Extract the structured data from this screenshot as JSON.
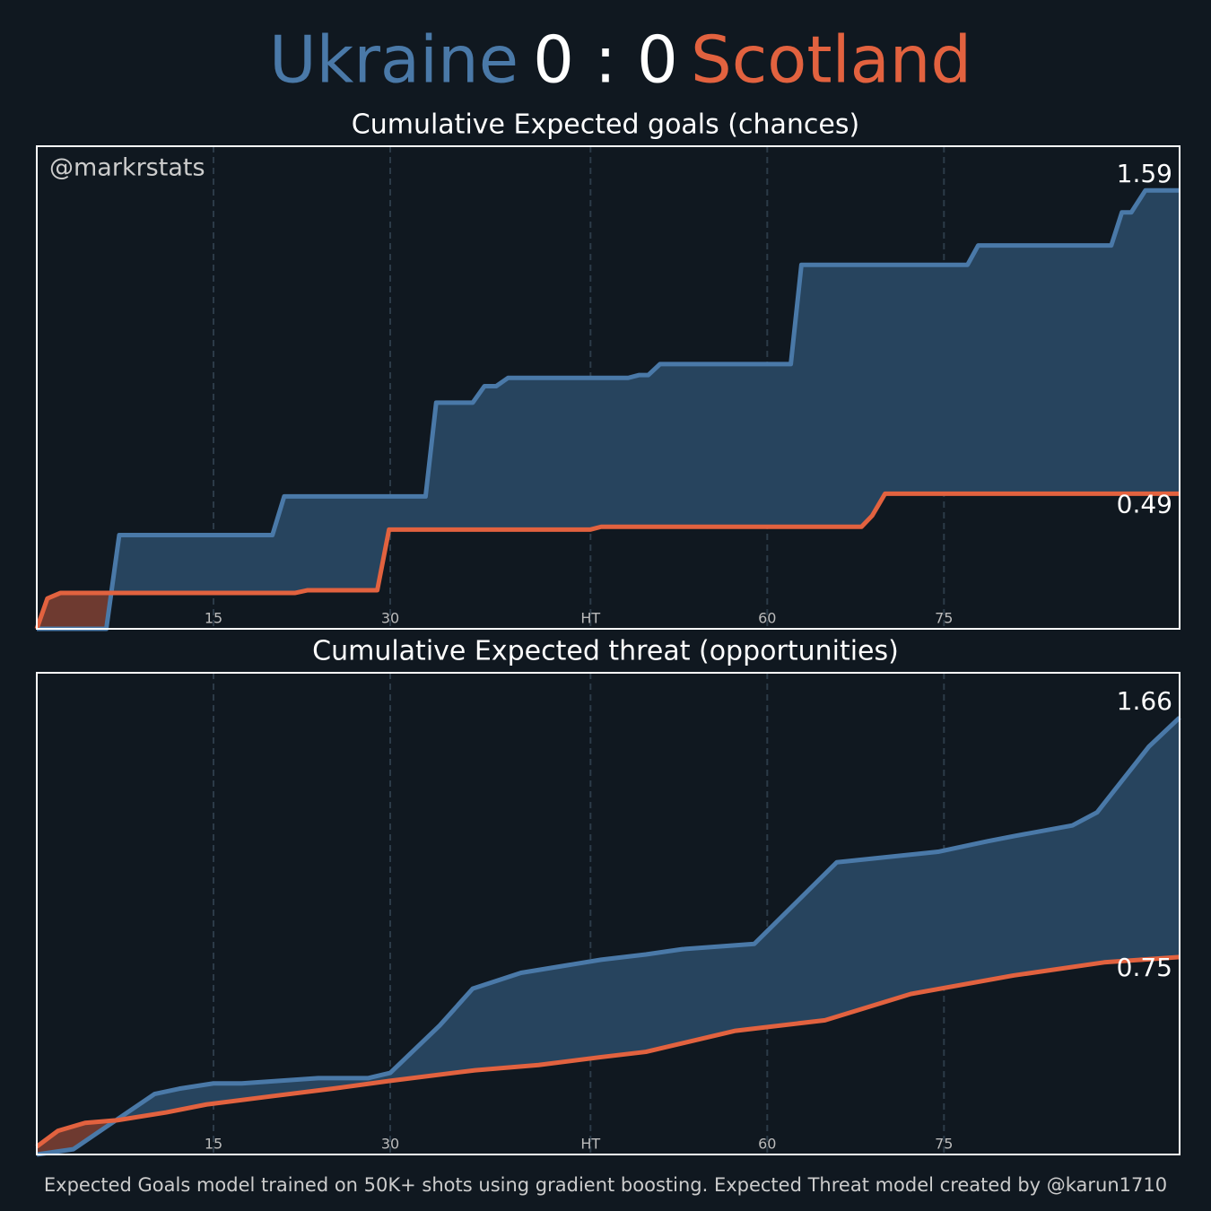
{
  "header": {
    "score": "0 : 0"
  },
  "watermark": "@markrstats",
  "footnote": "Expected Goals model trained on 50K+ shots using gradient boosting. Expected Threat model created by @karun1710",
  "chart_data": [
    {
      "type": "line",
      "title": "Cumulative Expected goals (chances)",
      "xlim": [
        0,
        97
      ],
      "xticks": [
        15,
        30,
        {
          "value": 47,
          "label": "HT"
        },
        {
          "value": 62,
          "label": "60"
        },
        {
          "value": 77,
          "label": "75"
        }
      ],
      "ylim": [
        0,
        1.75
      ],
      "grid": true,
      "series": [
        {
          "name": "Ukraine",
          "color": "#4a79a8",
          "fill": "#27445e",
          "x": [
            0,
            5.9,
            7.0,
            20,
            21,
            33,
            33.9,
            37,
            38,
            39,
            40,
            50.2,
            51.1,
            51.9,
            52.9,
            64,
            64.9,
            79,
            79.9,
            91.2,
            92.1,
            92.9,
            94.1,
            97
          ],
          "values": [
            0,
            0,
            0.34,
            0.34,
            0.48,
            0.48,
            0.82,
            0.82,
            0.88,
            0.88,
            0.91,
            0.91,
            0.92,
            0.92,
            0.96,
            0.96,
            1.32,
            1.32,
            1.39,
            1.39,
            1.51,
            1.51,
            1.59,
            1.59
          ]
        },
        {
          "name": "Scotland",
          "color": "#e2623f",
          "fill": "#6e3a30",
          "x": [
            0,
            0.9,
            2.0,
            21.9,
            23,
            28.9,
            29.9,
            47,
            47.9,
            70,
            70.9,
            72,
            97
          ],
          "values": [
            0,
            0.11,
            0.13,
            0.13,
            0.14,
            0.14,
            0.36,
            0.36,
            0.37,
            0.37,
            0.41,
            0.49,
            0.49
          ]
        }
      ]
    },
    {
      "type": "line",
      "title": "Cumulative Expected threat (opportunities)",
      "xlim": [
        0,
        97
      ],
      "xticks": [
        15,
        30,
        {
          "value": 47,
          "label": "HT"
        },
        {
          "value": 62,
          "label": "60"
        },
        {
          "value": 77,
          "label": "75"
        }
      ],
      "ylim": [
        0,
        1.83
      ],
      "grid": true,
      "series": [
        {
          "name": "Ukraine",
          "color": "#4a79a8",
          "fill": "#27445e",
          "x": [
            0,
            3.1,
            10,
            12.1,
            15,
            17.4,
            23.9,
            28.1,
            30,
            34.2,
            37,
            41.1,
            47.9,
            51.7,
            54.8,
            60.9,
            67.9,
            76.5,
            80.7,
            83,
            87.9,
            90,
            94.4,
            97
          ],
          "values": [
            0,
            0.02,
            0.23,
            0.25,
            0.27,
            0.27,
            0.29,
            0.29,
            0.31,
            0.49,
            0.63,
            0.69,
            0.74,
            0.76,
            0.78,
            0.8,
            1.11,
            1.15,
            1.19,
            1.21,
            1.25,
            1.3,
            1.55,
            1.66
          ]
        },
        {
          "name": "Scotland",
          "color": "#e2623f",
          "fill": "#6e3a30",
          "x": [
            0,
            1.8,
            4.1,
            6.8,
            11,
            14.4,
            19.7,
            25.1,
            30,
            37.2,
            42.6,
            47.9,
            51.7,
            59.3,
            66.9,
            74.2,
            82.9,
            90.6,
            97
          ],
          "values": [
            0.03,
            0.09,
            0.12,
            0.13,
            0.16,
            0.19,
            0.22,
            0.25,
            0.28,
            0.32,
            0.34,
            0.37,
            0.39,
            0.47,
            0.51,
            0.61,
            0.68,
            0.73,
            0.75
          ]
        }
      ]
    }
  ]
}
